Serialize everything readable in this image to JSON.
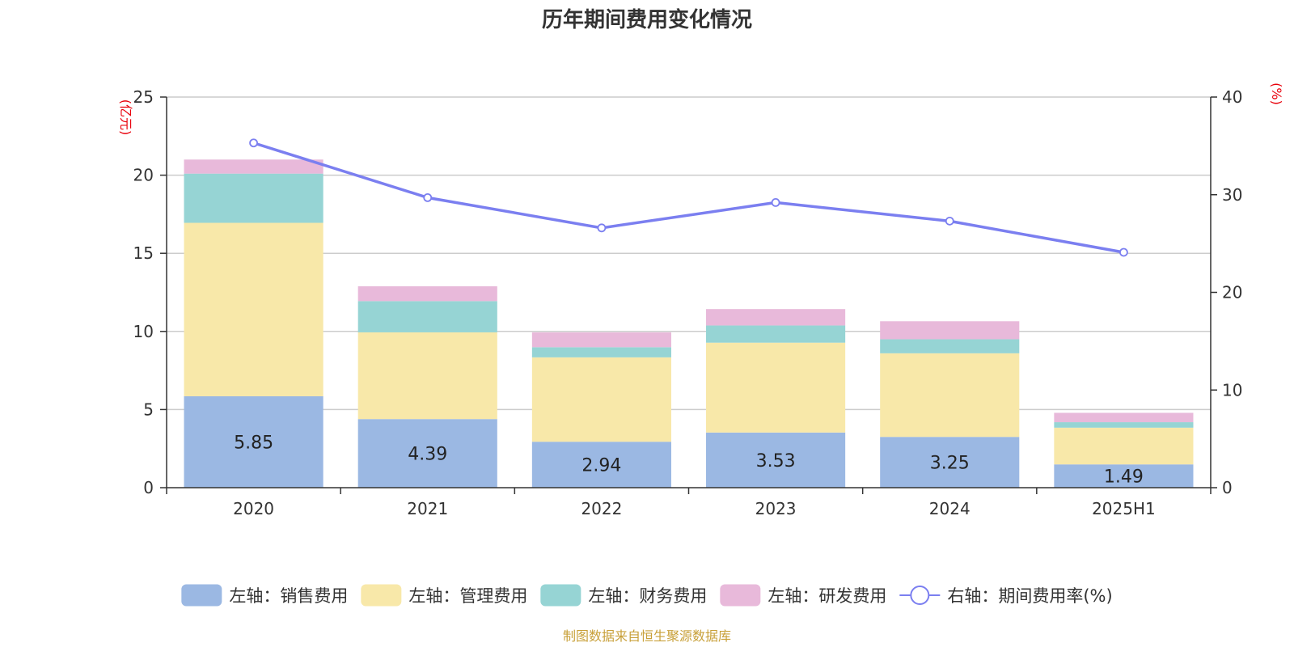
{
  "chart_data": {
    "type": "bar",
    "stacked": true,
    "title": "历年期间费用变化情况",
    "categories": [
      "2020",
      "2021",
      "2022",
      "2023",
      "2024",
      "2025H1"
    ],
    "left_axis": {
      "unit": "(亿元)",
      "ylim": [
        0,
        25
      ],
      "ticks": [
        0,
        5,
        10,
        15,
        20,
        25
      ]
    },
    "right_axis": {
      "unit": "(%)",
      "ylim": [
        0,
        40
      ],
      "ticks": [
        0,
        10,
        20,
        30,
        40
      ]
    },
    "series": [
      {
        "name": "左轴：销售费用",
        "axis": "left",
        "type": "bar",
        "color": "#9bb8e3",
        "values": [
          5.85,
          4.39,
          2.94,
          3.53,
          3.25,
          1.49
        ],
        "show_labels": true
      },
      {
        "name": "左轴：管理费用",
        "axis": "left",
        "type": "bar",
        "color": "#f8e8a9",
        "values": [
          11.1,
          5.55,
          5.4,
          5.75,
          5.35,
          2.35
        ]
      },
      {
        "name": "左轴：财务费用",
        "axis": "left",
        "type": "bar",
        "color": "#96d4d4",
        "values": [
          3.15,
          2.0,
          0.65,
          1.1,
          0.9,
          0.35
        ]
      },
      {
        "name": "左轴：研发费用",
        "axis": "left",
        "type": "bar",
        "color": "#e8b9da",
        "values": [
          0.9,
          0.95,
          0.95,
          1.05,
          1.15,
          0.6
        ]
      },
      {
        "name": "右轴：期间费用率(%)",
        "axis": "right",
        "type": "line",
        "color": "#7b7ff0",
        "values": [
          35.3,
          29.7,
          26.6,
          29.2,
          27.3,
          24.1
        ]
      }
    ],
    "legend_position": "bottom",
    "grid": true,
    "source": "制图数据来自恒生聚源数据库"
  }
}
